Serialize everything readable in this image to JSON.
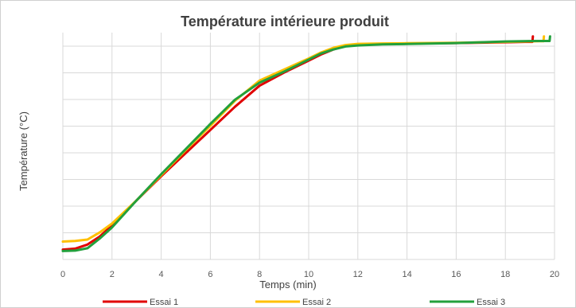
{
  "chart_data": {
    "type": "line",
    "title": "Température intérieure produit",
    "xlabel": "Temps (min)",
    "ylabel": "Température (°C)",
    "xlim": [
      0,
      20
    ],
    "xticks": [
      "0",
      "2",
      "4",
      "6",
      "8",
      "10",
      "12",
      "14",
      "16",
      "18",
      "20"
    ],
    "grid": true,
    "legend_position": "bottom",
    "series": [
      {
        "name": "Essai 1",
        "color": "#e00000",
        "points": [
          [
            0,
            0.045
          ],
          [
            0.5,
            0.05
          ],
          [
            1,
            0.07
          ],
          [
            1.5,
            0.11
          ],
          [
            2,
            0.165
          ],
          [
            3,
            0.29
          ],
          [
            4,
            0.41
          ],
          [
            5,
            0.525
          ],
          [
            6,
            0.64
          ],
          [
            7,
            0.755
          ],
          [
            8,
            0.86
          ],
          [
            9,
            0.925
          ],
          [
            10,
            0.985
          ],
          [
            10.5,
            1.015
          ],
          [
            11,
            1.04
          ],
          [
            11.5,
            1.058
          ],
          [
            12,
            1.065
          ],
          [
            13,
            1.068
          ],
          [
            14,
            1.069
          ],
          [
            16,
            1.072
          ],
          [
            18,
            1.076
          ],
          [
            18.8,
            1.078
          ],
          [
            19.1,
            1.078
          ],
          [
            19.12,
            1.105
          ]
        ]
      },
      {
        "name": "Essai 2",
        "color": "#ffc000",
        "points": [
          [
            0,
            0.085
          ],
          [
            0.5,
            0.088
          ],
          [
            1,
            0.095
          ],
          [
            1.5,
            0.13
          ],
          [
            2,
            0.175
          ],
          [
            3,
            0.29
          ],
          [
            4,
            0.415
          ],
          [
            5,
            0.54
          ],
          [
            6,
            0.66
          ],
          [
            7,
            0.785
          ],
          [
            8,
            0.885
          ],
          [
            9,
            0.94
          ],
          [
            10,
            0.995
          ],
          [
            10.5,
            1.025
          ],
          [
            11,
            1.048
          ],
          [
            11.5,
            1.062
          ],
          [
            12,
            1.068
          ],
          [
            13,
            1.07
          ],
          [
            14,
            1.071
          ],
          [
            16,
            1.073
          ],
          [
            18,
            1.078
          ],
          [
            19.4,
            1.081
          ],
          [
            19.55,
            1.081
          ],
          [
            19.57,
            1.105
          ]
        ]
      },
      {
        "name": "Essai 3",
        "color": "#22a03c",
        "points": [
          [
            0,
            0.038
          ],
          [
            0.5,
            0.04
          ],
          [
            1,
            0.052
          ],
          [
            1.5,
            0.1
          ],
          [
            2,
            0.155
          ],
          [
            3,
            0.29
          ],
          [
            4,
            0.42
          ],
          [
            5,
            0.545
          ],
          [
            6,
            0.67
          ],
          [
            7,
            0.79
          ],
          [
            8,
            0.875
          ],
          [
            9,
            0.93
          ],
          [
            10,
            0.99
          ],
          [
            10.5,
            1.02
          ],
          [
            11,
            1.04
          ],
          [
            11.5,
            1.055
          ],
          [
            12,
            1.06
          ],
          [
            13,
            1.065
          ],
          [
            14,
            1.067
          ],
          [
            16,
            1.072
          ],
          [
            18,
            1.08
          ],
          [
            19.2,
            1.082
          ],
          [
            19.8,
            1.082
          ],
          [
            19.82,
            1.105
          ]
        ]
      }
    ]
  }
}
